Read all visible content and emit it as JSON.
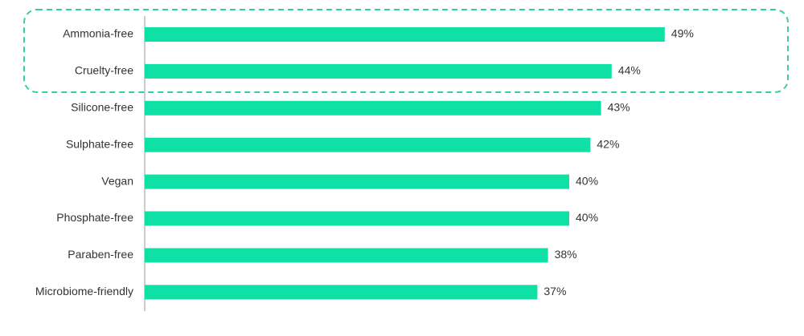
{
  "chart_data": {
    "type": "barh",
    "categories": [
      "Ammonia-free",
      "Cruelty-free",
      "Silicone-free",
      "Sulphate-free",
      "Vegan",
      "Phosphate-free",
      "Paraben-free",
      "Microbiome-friendly"
    ],
    "values": [
      49,
      44,
      43,
      42,
      40,
      40,
      38,
      37
    ],
    "value_labels": [
      "49%",
      "44%",
      "43%",
      "42%",
      "40%",
      "40%",
      "38%",
      "37%"
    ],
    "color": "#0fe0a6"
  }
}
